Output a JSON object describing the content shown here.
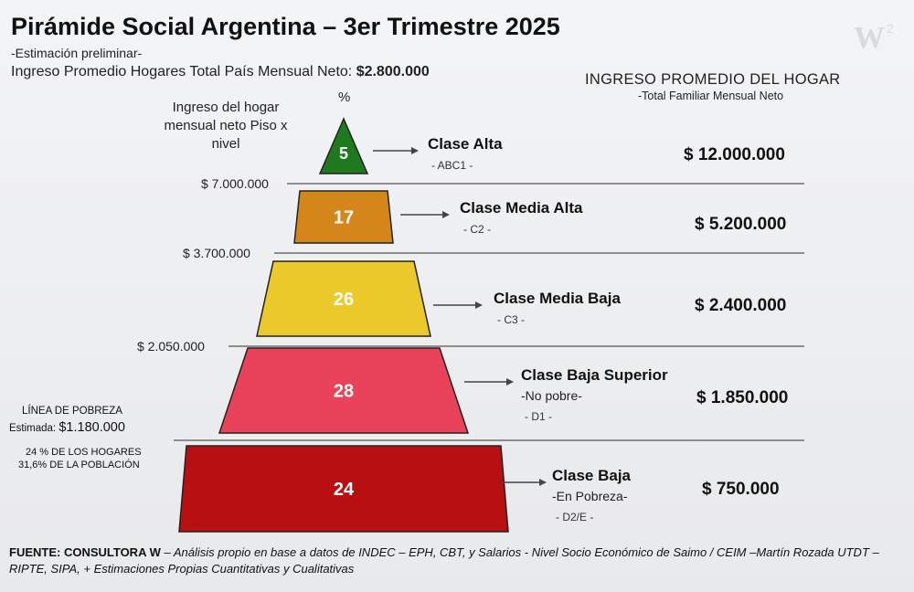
{
  "header": {
    "title": "Pirámide Social Argentina – 3er Trimestre 2025",
    "subtitle": "-Estimación preliminar-",
    "avg_income_label": "Ingreso Promedio Hogares Total País Mensual Neto:",
    "avg_income_value": "$2.800.000"
  },
  "column_header": {
    "title": "INGRESO PROMEDIO DEL HOGAR",
    "subtitle": "-Total Familiar Mensual Neto"
  },
  "left_header": "Ingreso del hogar mensual neto Piso x nivel",
  "percent_header": "%",
  "thresholds": [
    "$ 7.000.000",
    "$ 3.700.000",
    "$ 2.050.000"
  ],
  "poverty": {
    "line_label": "LÍNEA DE POBREZA",
    "estimate_label": "Estimada:",
    "estimate_value": "$1.180.000",
    "households": "24 % DE LOS HOGARES",
    "population": "31,6% DE LA POBLACIÓN"
  },
  "source": {
    "label": "FUENTE: CONSULTORA W",
    "text": " – Análisis propio en base a datos de INDEC – EPH, CBT, y Salarios - Nivel Socio Económico de Saimo / CEIM –Martín Rozada UTDT – RIPTE, SIPA, + Estimaciones Propias Cuantitativas y Cualitativas"
  },
  "colors": {
    "alta": "#1f7a1f",
    "media_alta": "#d4861a",
    "media_baja": "#ecc92a",
    "baja_superior": "#e8435a",
    "baja": "#b80f12"
  },
  "chart_data": {
    "type": "pyramid",
    "categories": [
      "Clase Alta",
      "Clase Media Alta",
      "Clase Media Baja",
      "Clase Baja Superior",
      "Clase Baja"
    ],
    "values": [
      5,
      17,
      26,
      28,
      24
    ],
    "codes": [
      "- ABC1 -",
      "- C2 -",
      "- C3 -",
      "- D1 -",
      "- D2/E -"
    ],
    "notes": [
      "",
      "",
      "",
      "-No pobre-",
      "-En Pobreza-"
    ],
    "avg_household_income": [
      "$ 12.000.000",
      "$ 5.200.000",
      "$ 2.400.000",
      "$ 1.850.000",
      "$ 750.000"
    ],
    "floor_income": [
      "$ 7.000.000",
      "$ 3.700.000",
      "$ 2.050.000"
    ]
  }
}
